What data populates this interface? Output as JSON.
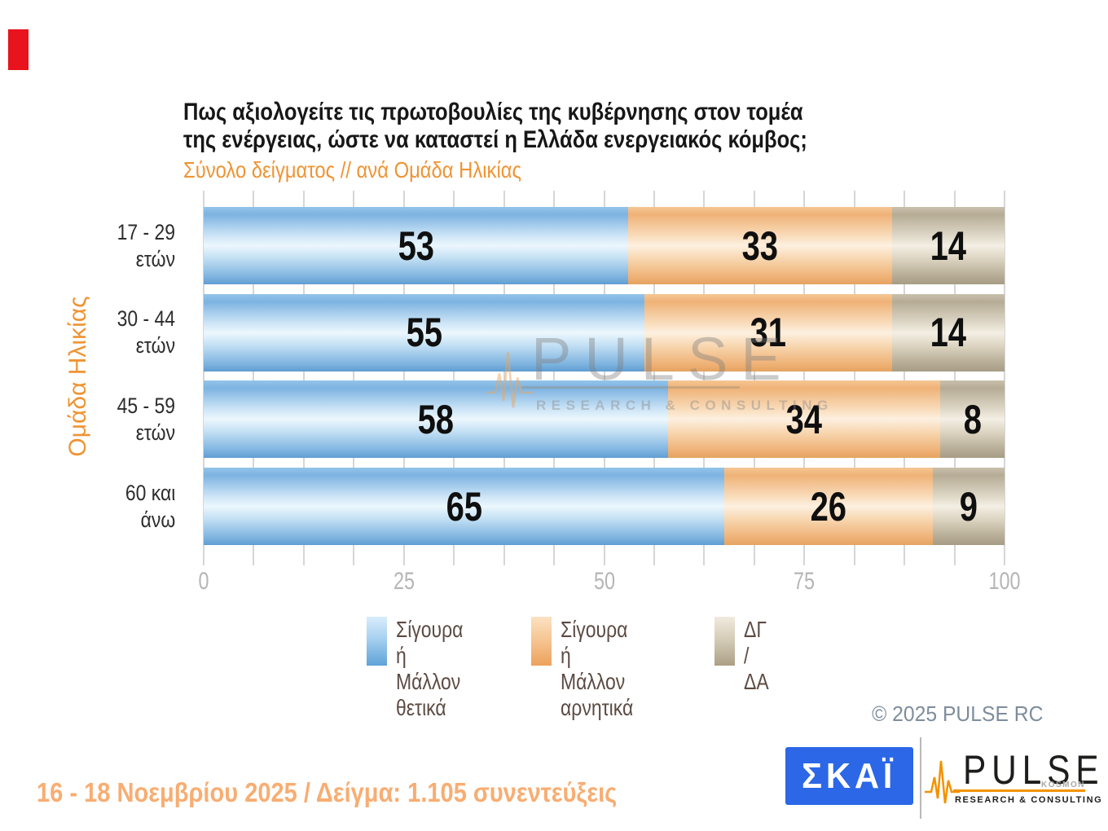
{
  "accent": {
    "red_mark_color": "#e8131d"
  },
  "title": {
    "line1": "Πως αξιολογείτε τις πρωτοβουλίες της κυβέρνησης στον τομέα",
    "line2": "της ενέργειας, ώστε να καταστεί η Ελλάδα ενεργειακός κόμβος;",
    "subtitle": "Σύνολο δείγματος // ανά Ομάδα Ηλικίας"
  },
  "y_axis_label": "Ομάδα Ηλικίας",
  "chart_data": {
    "type": "bar",
    "orientation": "horizontal",
    "stacked": true,
    "categories": [
      "17 - 29\nετών",
      "30 - 44\nετών",
      "45 - 59\nετών",
      "60 και\nάνω"
    ],
    "series": [
      {
        "name": "Σίγουρα ή Μάλλον θετικά",
        "color": "#85bbe4",
        "values": [
          53,
          55,
          58,
          65
        ]
      },
      {
        "name": "Σίγουρα ή Μάλλον αρνητικά",
        "color": "#f1b77e",
        "values": [
          33,
          31,
          34,
          26
        ]
      },
      {
        "name": "ΔΓ / ΔΑ",
        "color": "#c7bda8",
        "values": [
          14,
          14,
          8,
          9
        ]
      }
    ],
    "xlim": [
      0,
      100
    ],
    "x_ticks": [
      0,
      25,
      50,
      75,
      100
    ],
    "minor_tick_step": 6.25,
    "grid": true,
    "legend_position": "bottom"
  },
  "legend": {
    "items": [
      {
        "label": "Σίγουρα ή\nΜάλλον θετικά"
      },
      {
        "label": "Σίγουρα ή\nΜάλλον αρνητικά"
      },
      {
        "label": "ΔΓ /\nΔΑ"
      }
    ]
  },
  "watermark": {
    "text": "PULSE",
    "subtext": "RESEARCH & CONSULTING"
  },
  "footer": {
    "copyright": "©  2025  PULSE RC",
    "fieldwork": "16 - 18 Νοεμβρίου 2025  /  Δείγμα:  1.105 συνεντεύξεις"
  },
  "logos": {
    "skai_text": "ΣΚΑΪ",
    "pulse_name": "PULSE",
    "pulse_kosmon": "KOSMON",
    "pulse_tagline": "RESEARCH & CONSULTING"
  }
}
